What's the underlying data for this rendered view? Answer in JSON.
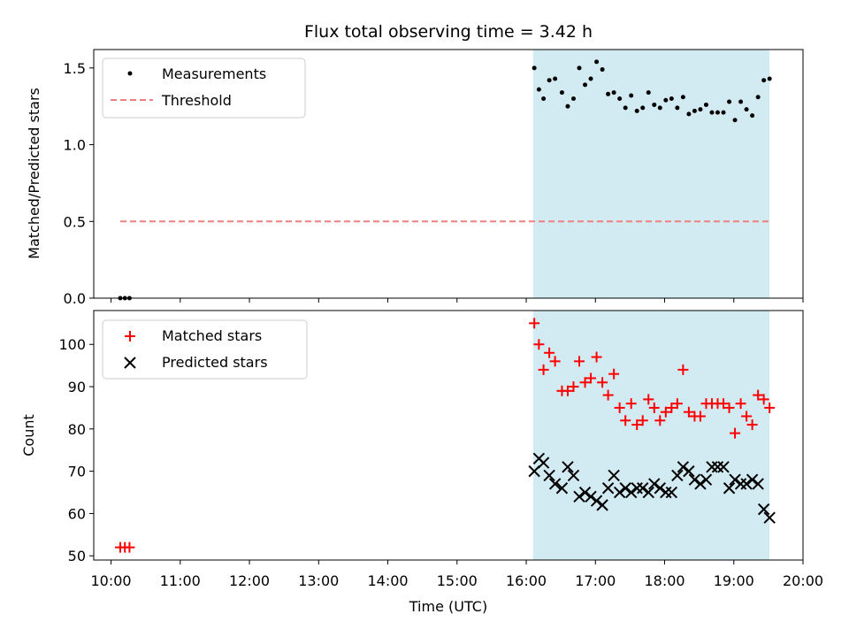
{
  "chart_data": {
    "title": "Flux total observing time = 3.42 h",
    "xlabel": "Time (UTC)",
    "x_ticks": [
      "10:00",
      "11:00",
      "12:00",
      "13:00",
      "14:00",
      "15:00",
      "16:00",
      "17:00",
      "18:00",
      "19:00",
      "20:00"
    ],
    "xlim": [
      "09:45",
      "20:00"
    ],
    "observing_window": [
      "16:06",
      "19:31"
    ],
    "shade_color": "#add8e6",
    "panels": [
      {
        "type": "scatter",
        "ylabel": "Matched/Predicted stars",
        "ylim": [
          0.0,
          1.62
        ],
        "yticks": [
          "0.0",
          "0.5",
          "1.0",
          "1.5"
        ],
        "legend_position": "upper-left",
        "series": [
          {
            "name": "Measurements",
            "marker": "dot",
            "color": "#000000",
            "points": [
              [
                "10:08",
                0.0
              ],
              [
                "10:12",
                0.0
              ],
              [
                "10:16",
                0.0
              ],
              [
                "16:07",
                1.5
              ],
              [
                "16:11",
                1.36
              ],
              [
                "16:15",
                1.3
              ],
              [
                "16:20",
                1.42
              ],
              [
                "16:25",
                1.43
              ],
              [
                "16:31",
                1.34
              ],
              [
                "16:36",
                1.25
              ],
              [
                "16:41",
                1.3
              ],
              [
                "16:46",
                1.5
              ],
              [
                "16:51",
                1.39
              ],
              [
                "16:56",
                1.43
              ],
              [
                "17:01",
                1.54
              ],
              [
                "17:06",
                1.49
              ],
              [
                "17:11",
                1.33
              ],
              [
                "17:16",
                1.34
              ],
              [
                "17:21",
                1.3
              ],
              [
                "17:26",
                1.24
              ],
              [
                "17:31",
                1.32
              ],
              [
                "17:36",
                1.22
              ],
              [
                "17:41",
                1.24
              ],
              [
                "17:46",
                1.34
              ],
              [
                "17:51",
                1.26
              ],
              [
                "17:56",
                1.24
              ],
              [
                "18:01",
                1.29
              ],
              [
                "18:06",
                1.3
              ],
              [
                "18:11",
                1.24
              ],
              [
                "18:16",
                1.31
              ],
              [
                "18:21",
                1.2
              ],
              [
                "18:26",
                1.22
              ],
              [
                "18:31",
                1.23
              ],
              [
                "18:36",
                1.26
              ],
              [
                "18:41",
                1.21
              ],
              [
                "18:46",
                1.21
              ],
              [
                "18:51",
                1.21
              ],
              [
                "18:56",
                1.28
              ],
              [
                "19:01",
                1.16
              ],
              [
                "19:06",
                1.28
              ],
              [
                "19:11",
                1.23
              ],
              [
                "19:16",
                1.19
              ],
              [
                "19:21",
                1.31
              ],
              [
                "19:26",
                1.42
              ],
              [
                "19:31",
                1.43
              ]
            ]
          },
          {
            "name": "Threshold",
            "marker": "dashed-line",
            "color": "#f08080",
            "points": [
              [
                "10:08",
                0.5
              ],
              [
                "19:31",
                0.5
              ]
            ]
          }
        ]
      },
      {
        "type": "scatter",
        "ylabel": "Count",
        "ylim": [
          49,
          108
        ],
        "yticks": [
          "50",
          "60",
          "70",
          "80",
          "90",
          "100"
        ],
        "legend_position": "upper-left",
        "series": [
          {
            "name": "Matched stars",
            "marker": "plus",
            "color": "#ff0000",
            "points": [
              [
                "10:08",
                52
              ],
              [
                "10:12",
                52
              ],
              [
                "10:16",
                52
              ],
              [
                "16:07",
                105
              ],
              [
                "16:11",
                100
              ],
              [
                "16:15",
                94
              ],
              [
                "16:20",
                98
              ],
              [
                "16:25",
                96
              ],
              [
                "16:31",
                89
              ],
              [
                "16:36",
                89
              ],
              [
                "16:41",
                90
              ],
              [
                "16:46",
                96
              ],
              [
                "16:51",
                91
              ],
              [
                "16:56",
                92
              ],
              [
                "17:01",
                97
              ],
              [
                "17:06",
                91
              ],
              [
                "17:11",
                88
              ],
              [
                "17:16",
                93
              ],
              [
                "17:21",
                85
              ],
              [
                "17:26",
                82
              ],
              [
                "17:31",
                86
              ],
              [
                "17:36",
                81
              ],
              [
                "17:41",
                82
              ],
              [
                "17:46",
                87
              ],
              [
                "17:51",
                85
              ],
              [
                "17:56",
                82
              ],
              [
                "18:01",
                84
              ],
              [
                "18:06",
                85
              ],
              [
                "18:11",
                86
              ],
              [
                "18:16",
                94
              ],
              [
                "18:21",
                84
              ],
              [
                "18:26",
                83
              ],
              [
                "18:31",
                83
              ],
              [
                "18:36",
                86
              ],
              [
                "18:41",
                86
              ],
              [
                "18:46",
                86
              ],
              [
                "18:51",
                86
              ],
              [
                "18:56",
                85
              ],
              [
                "19:01",
                79
              ],
              [
                "19:06",
                86
              ],
              [
                "19:11",
                83
              ],
              [
                "19:16",
                81
              ],
              [
                "19:21",
                88
              ],
              [
                "19:26",
                87
              ],
              [
                "19:31",
                85
              ]
            ]
          },
          {
            "name": "Predicted stars",
            "marker": "x",
            "color": "#000000",
            "points": [
              [
                "16:07",
                70
              ],
              [
                "16:11",
                73
              ],
              [
                "16:15",
                72
              ],
              [
                "16:20",
                69
              ],
              [
                "16:25",
                67
              ],
              [
                "16:31",
                66
              ],
              [
                "16:36",
                71
              ],
              [
                "16:41",
                69
              ],
              [
                "16:46",
                64
              ],
              [
                "16:51",
                65
              ],
              [
                "16:56",
                64
              ],
              [
                "17:01",
                63
              ],
              [
                "17:06",
                62
              ],
              [
                "17:11",
                66
              ],
              [
                "17:16",
                69
              ],
              [
                "17:21",
                65
              ],
              [
                "17:26",
                66
              ],
              [
                "17:31",
                65
              ],
              [
                "17:36",
                66
              ],
              [
                "17:41",
                66
              ],
              [
                "17:46",
                65
              ],
              [
                "17:51",
                67
              ],
              [
                "17:56",
                66
              ],
              [
                "18:01",
                65
              ],
              [
                "18:06",
                65
              ],
              [
                "18:11",
                69
              ],
              [
                "18:16",
                71
              ],
              [
                "18:21",
                70
              ],
              [
                "18:26",
                68
              ],
              [
                "18:31",
                67
              ],
              [
                "18:36",
                68
              ],
              [
                "18:41",
                71
              ],
              [
                "18:46",
                71
              ],
              [
                "18:51",
                71
              ],
              [
                "18:56",
                66
              ],
              [
                "19:01",
                68
              ],
              [
                "19:06",
                67
              ],
              [
                "19:11",
                67
              ],
              [
                "19:16",
                68
              ],
              [
                "19:21",
                67
              ],
              [
                "19:26",
                61
              ],
              [
                "19:31",
                59
              ]
            ]
          }
        ]
      }
    ]
  }
}
